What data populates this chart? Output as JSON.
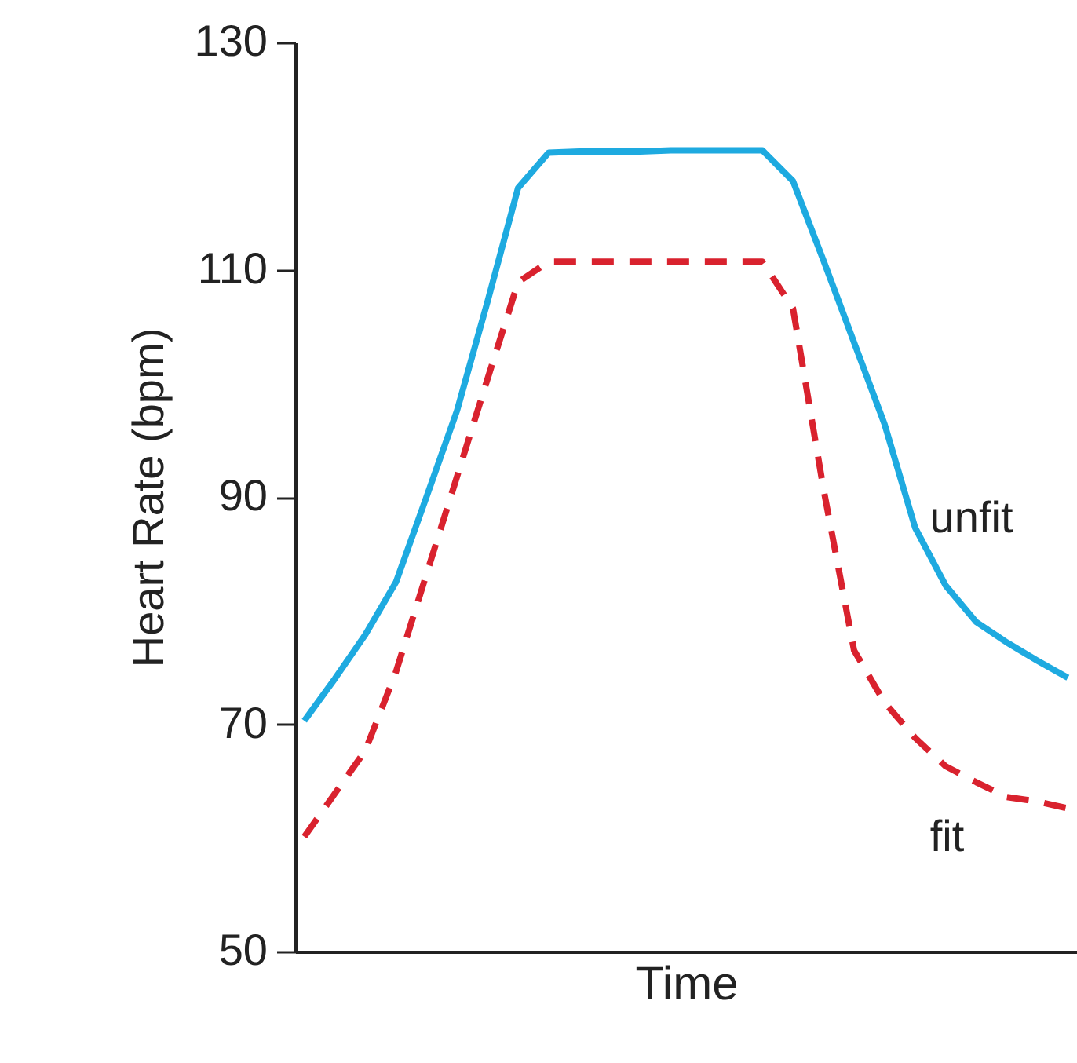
{
  "chart_data": {
    "type": "line",
    "xlabel": "Time",
    "ylabel": "Heart Rate (bpm)",
    "categories": [
      null,
      null,
      null,
      null,
      null,
      null,
      null,
      null,
      null,
      null,
      null,
      null,
      null,
      null,
      null,
      null,
      null,
      null,
      null,
      null,
      null,
      null,
      null,
      null,
      null,
      null
    ],
    "ylim": [
      50,
      130
    ],
    "yticks": [
      50,
      70,
      90,
      110,
      130
    ],
    "tick_labels": "y",
    "series": [
      {
        "name": "unfit",
        "color": "#1eaae0",
        "line_style": "solid",
        "values": [
          70.3,
          74.0,
          77.9,
          82.5,
          90.0,
          97.6,
          107.2,
          117.2,
          120.3,
          120.4,
          120.4,
          120.4,
          120.5,
          120.5,
          120.5,
          120.5,
          117.8,
          110.8,
          103.6,
          96.4,
          87.3,
          82.2,
          79.0,
          77.2,
          75.6,
          74.1
        ]
      },
      {
        "name": "fit",
        "color": "#d9222e",
        "line_style": "dashed",
        "values": [
          60.1,
          63.9,
          67.7,
          74.6,
          83.2,
          91.8,
          100.4,
          108.9,
          110.7,
          110.7,
          110.7,
          110.7,
          110.7,
          110.7,
          110.7,
          110.7,
          106.6,
          90.7,
          76.5,
          71.9,
          68.8,
          66.3,
          64.9,
          63.6,
          63.2,
          62.6
        ]
      }
    ]
  }
}
